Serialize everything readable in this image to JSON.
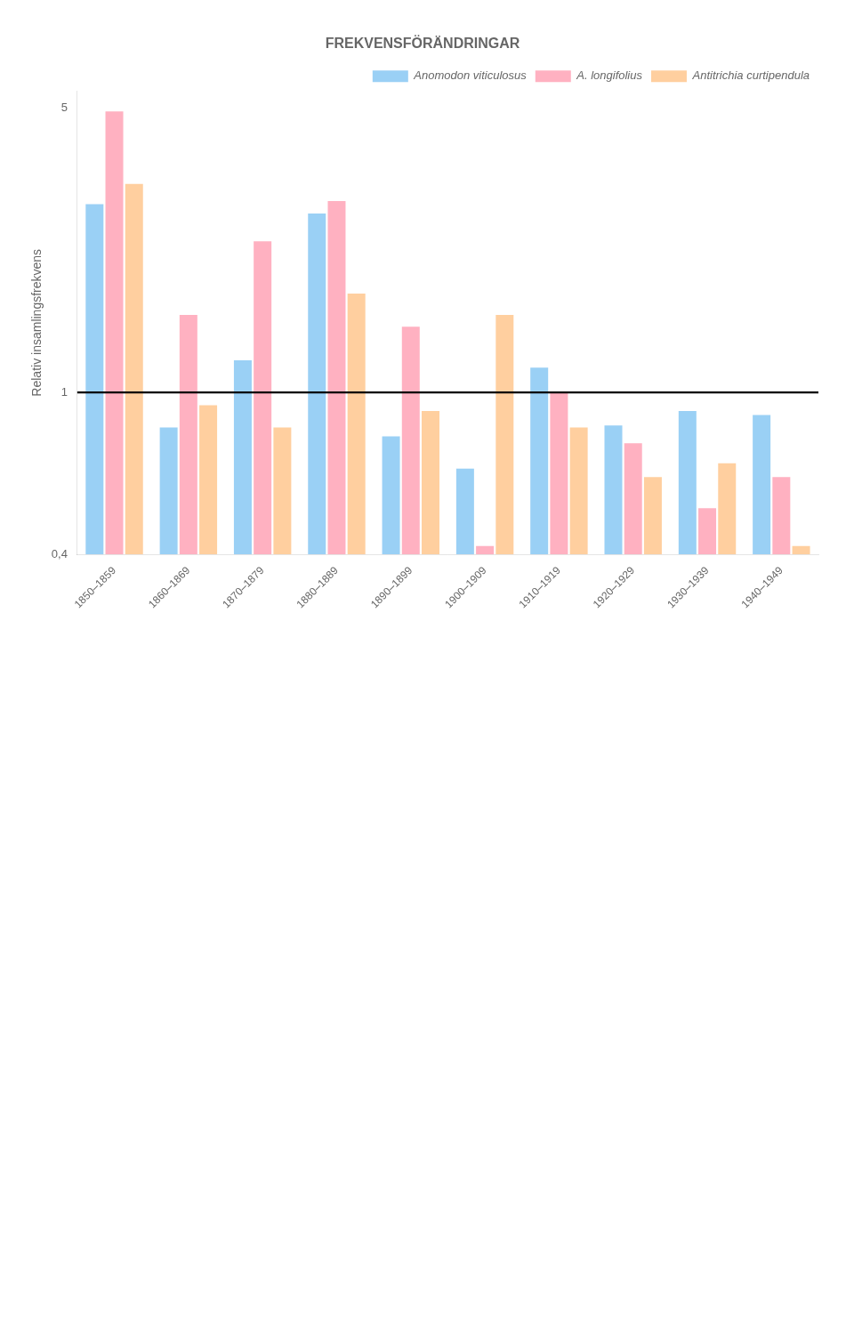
{
  "chart_data": {
    "type": "bar",
    "title": "FREKVENSFÖRÄNDRINGAR",
    "ylabel": "Relativ insamlingsfrekvens",
    "categories": [
      "1850–1859",
      "1860–1869",
      "1870–1879",
      "1880–1889",
      "1890–1899",
      "1900–1909",
      "1910–1919",
      "1920–1929",
      "1930–1939",
      "1940–1949"
    ],
    "series": [
      {
        "name": "Anomodon viticulosus",
        "values": [
          2.9,
          0.82,
          1.2,
          2.75,
          0.78,
          0.65,
          1.15,
          0.83,
          0.9,
          0.88
        ]
      },
      {
        "name": "A. longifolius",
        "values": [
          4.9,
          1.55,
          2.35,
          2.95,
          1.45,
          0.42,
          1.0,
          0.75,
          0.52,
          0.62
        ]
      },
      {
        "name": "Antitrichia curtipendula",
        "values": [
          3.25,
          0.93,
          0.82,
          1.75,
          0.9,
          1.55,
          0.82,
          0.62,
          0.67,
          0.42
        ]
      }
    ],
    "log": "y",
    "ylim": [
      0.4,
      5.5
    ],
    "yticks": [
      {
        "value": 0.4,
        "label": "0,4"
      },
      1,
      5
    ],
    "grid": false,
    "legend": "upper right",
    "reference_line": 1
  }
}
